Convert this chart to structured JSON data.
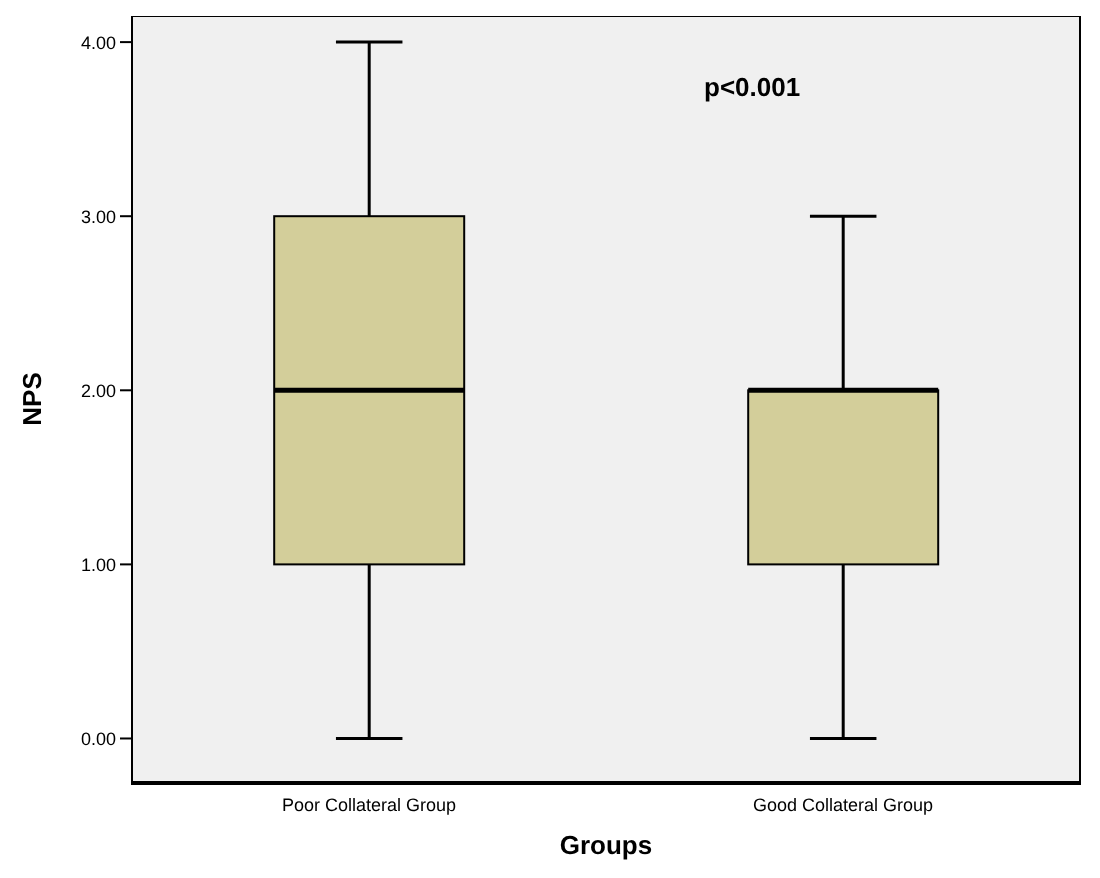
{
  "chart_data": {
    "type": "box",
    "xlabel": "Groups",
    "ylabel": "NPS",
    "categories": [
      "Poor Collateral Group",
      "Good Collateral Group"
    ],
    "boxes": [
      {
        "low": 0,
        "q1": 1,
        "median": 2,
        "q3": 3,
        "high": 4
      },
      {
        "low": 0,
        "q1": 1,
        "median": 2,
        "q3": 2,
        "high": 3
      }
    ],
    "color": "#d3ce9a",
    "ylim": [
      -0.25,
      4.15
    ],
    "yticks": [
      {
        "value": 0,
        "label": "0.00"
      },
      {
        "value": 1,
        "label": "1.00"
      },
      {
        "value": 2,
        "label": "2.00"
      },
      {
        "value": 3,
        "label": "3.00"
      },
      {
        "value": 4,
        "label": "4.00"
      }
    ],
    "annotations": [
      "p<0.001"
    ]
  }
}
